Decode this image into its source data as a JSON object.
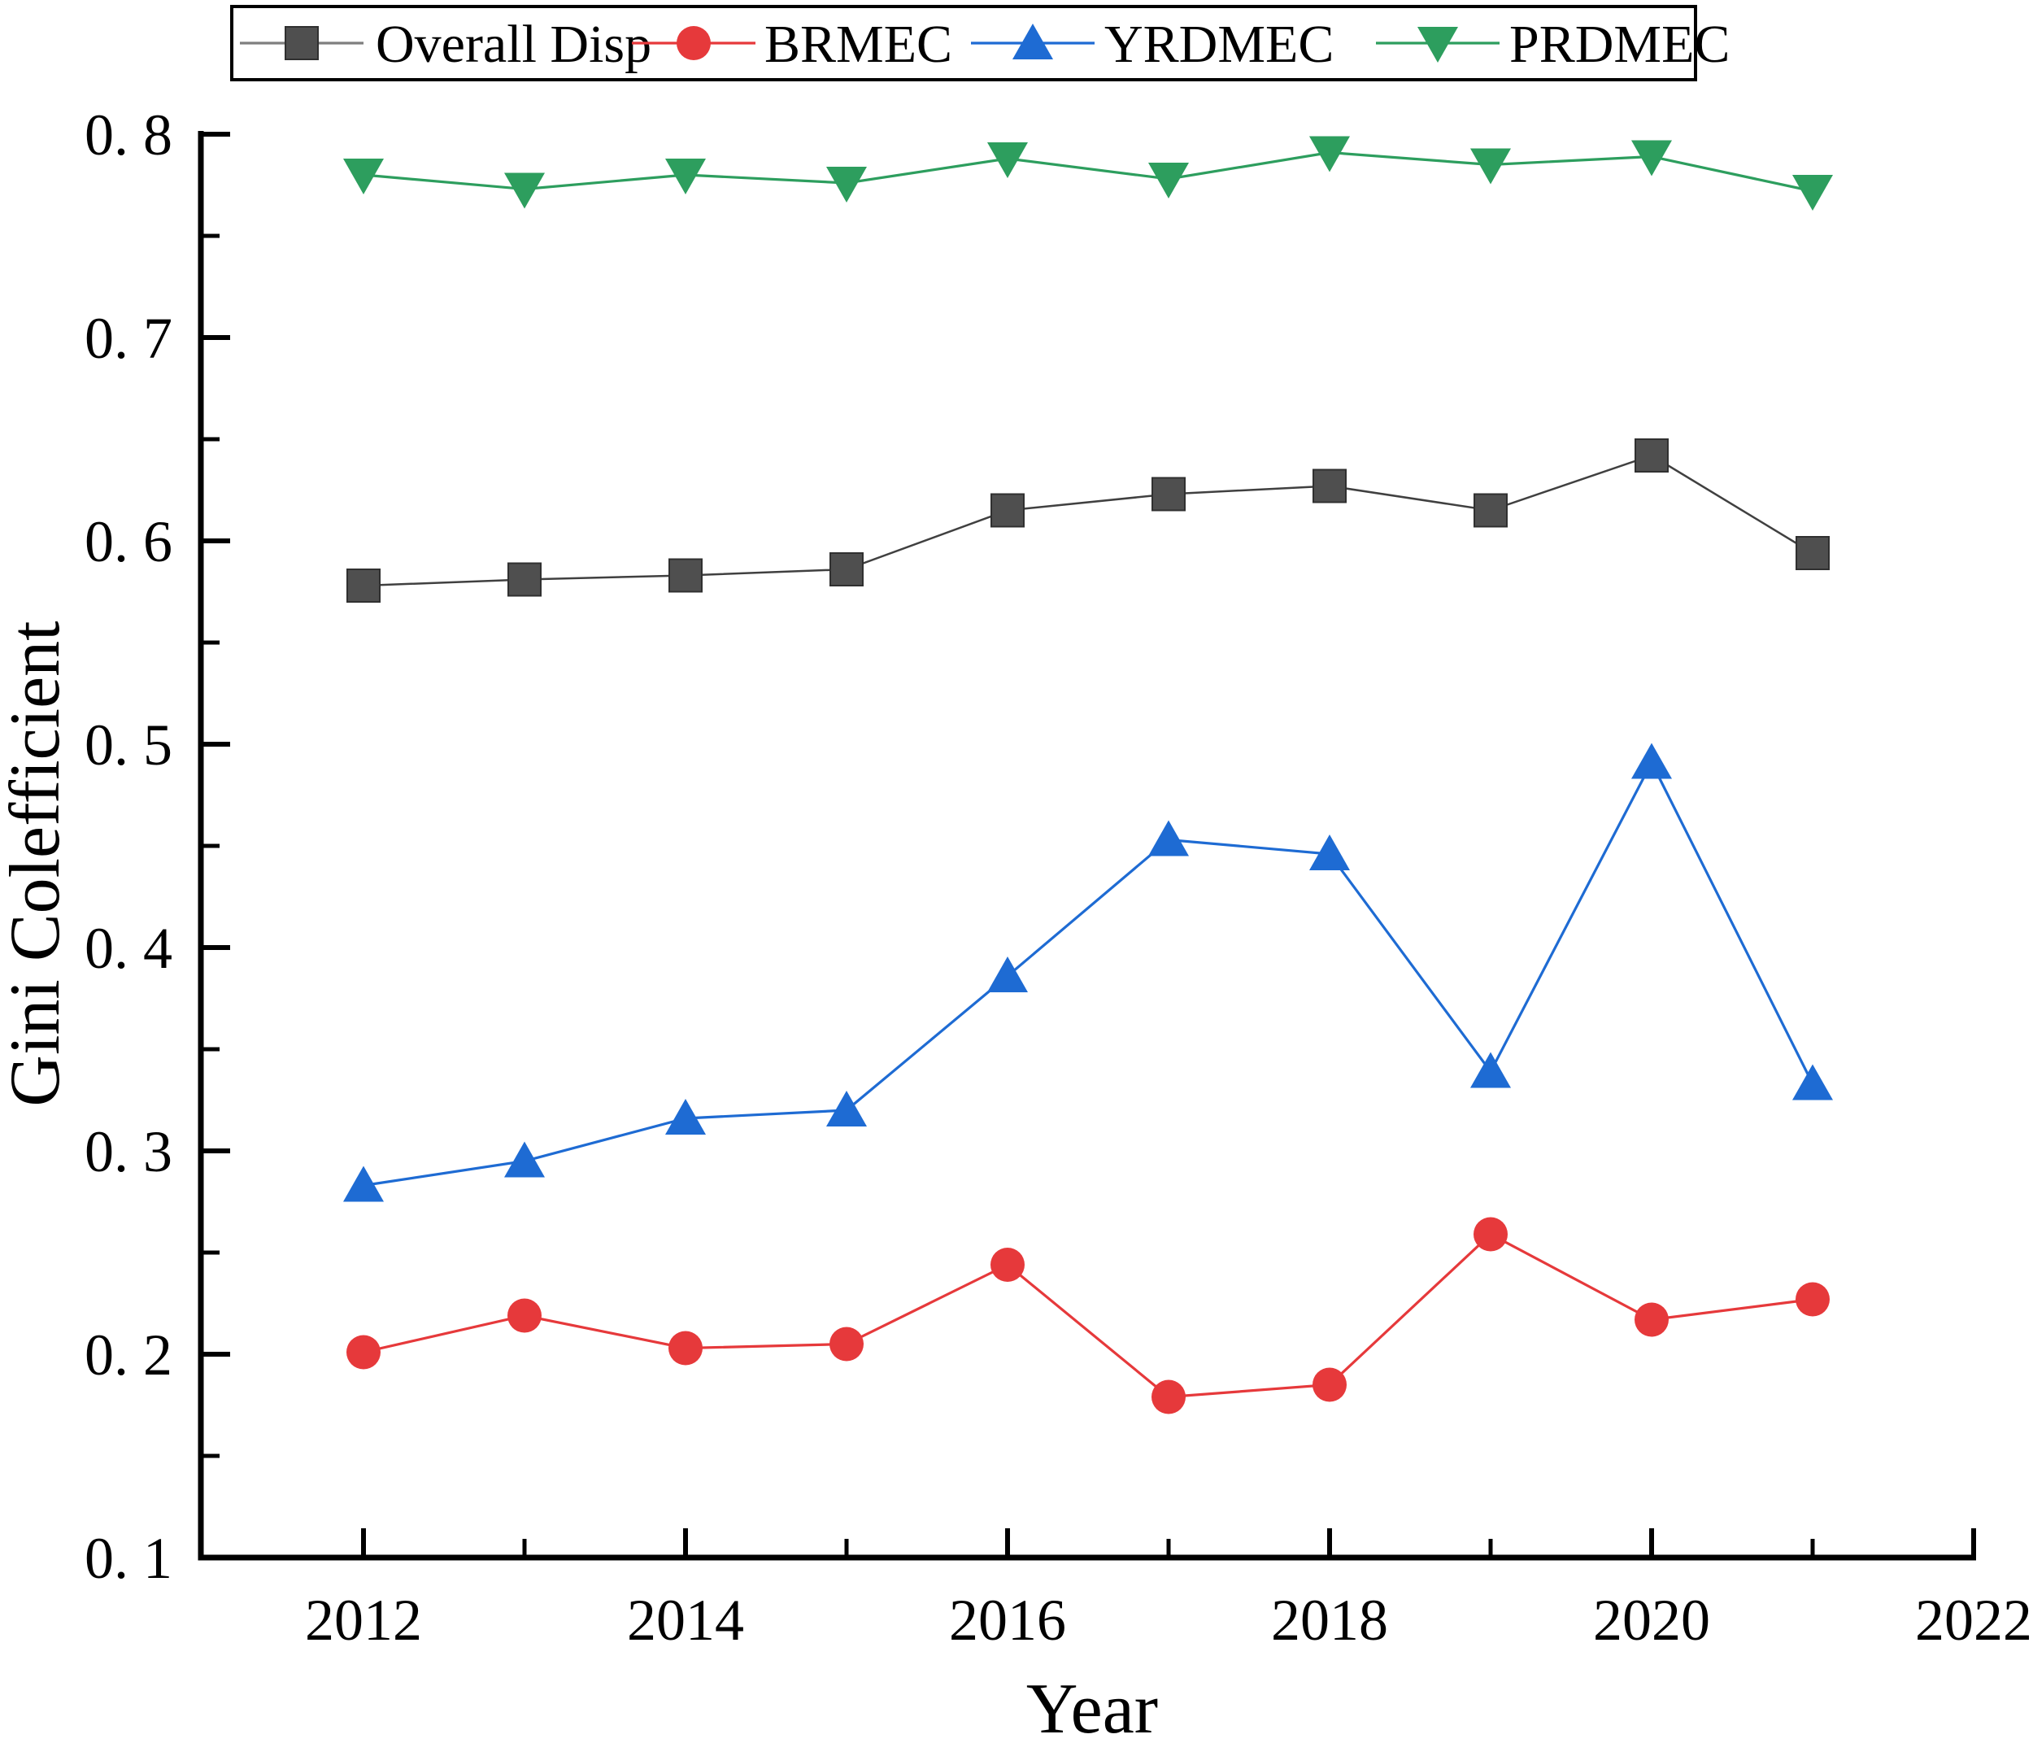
{
  "figure": {
    "background": "#ffffff",
    "axis_color": "#000000",
    "legend_border_color": "#000000",
    "legend_gray_line": "#7f7f7f"
  },
  "chart_data": {
    "type": "line",
    "title": "",
    "xlabel": "Year",
    "ylabel": "Gini Colefficient",
    "xlim": [
      2011,
      2022
    ],
    "ylim": [
      0.1,
      0.8
    ],
    "grid": false,
    "legend_position": "top-horizontal",
    "x": [
      2012,
      2013,
      2014,
      2015,
      2016,
      2017,
      2018,
      2019,
      2020,
      2021
    ],
    "series": [
      {
        "name": "Overall Disp",
        "marker": "square",
        "color": "#4f4f4f",
        "line_color": "#404040",
        "values": [
          0.578,
          0.581,
          0.583,
          0.586,
          0.615,
          0.623,
          0.627,
          0.615,
          0.642,
          0.594
        ]
      },
      {
        "name": "BRMEC",
        "marker": "circle",
        "color": "#e6393b",
        "line_color": "#e6393b",
        "values": [
          0.201,
          0.219,
          0.203,
          0.205,
          0.244,
          0.179,
          0.185,
          0.259,
          0.217,
          0.227
        ]
      },
      {
        "name": "YRDMEC",
        "marker": "triangle-up",
        "color": "#1e6bd3",
        "line_color": "#1e6bd3",
        "values": [
          0.283,
          0.295,
          0.316,
          0.32,
          0.386,
          0.453,
          0.446,
          0.339,
          0.491,
          0.333
        ]
      },
      {
        "name": "PRDMEC",
        "marker": "triangle-down",
        "color": "#2d9e5e",
        "line_color": "#2d9e5e",
        "values": [
          0.78,
          0.773,
          0.78,
          0.776,
          0.788,
          0.778,
          0.791,
          0.785,
          0.789,
          0.772
        ]
      }
    ],
    "x_ticks": {
      "values": [
        2012,
        2014,
        2016,
        2018,
        2020,
        2022
      ],
      "labels": [
        "2012",
        "2014",
        "2016",
        "2018",
        "2020",
        "2022"
      ]
    },
    "x_minor_ticks": [
      2013,
      2015,
      2017,
      2019,
      2021
    ],
    "y_ticks": {
      "values": [
        0.1,
        0.2,
        0.3,
        0.4,
        0.5,
        0.6,
        0.7,
        0.8
      ],
      "labels": [
        "0. 1",
        "0. 2",
        "0. 3",
        "0. 4",
        "0. 5",
        "0. 6",
        "0. 7",
        "0. 8"
      ]
    },
    "y_minor_ticks": [
      0.15,
      0.25,
      0.35,
      0.45,
      0.55,
      0.65,
      0.75
    ]
  }
}
